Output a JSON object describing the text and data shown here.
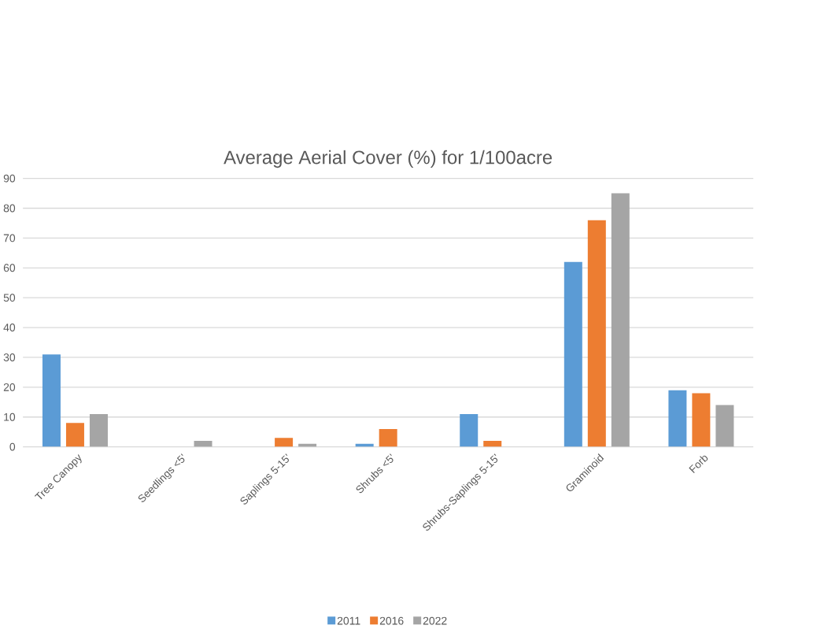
{
  "chart_data": {
    "type": "bar",
    "title": "Average Aerial Cover (%) for 1/100acre",
    "categories": [
      "Tree Canopy",
      "Seedlings <5'",
      "Saplings 5-15'",
      "Shrubs <5'",
      "Shrubs-Saplings 5-15'",
      "Graminoid",
      "Forb"
    ],
    "series": [
      {
        "name": "2011",
        "color": "#5b9bd5",
        "values": [
          31,
          0,
          0,
          1,
          11,
          62,
          19
        ]
      },
      {
        "name": "2016",
        "color": "#ed7d31",
        "values": [
          8,
          0,
          3,
          6,
          2,
          76,
          18
        ]
      },
      {
        "name": "2022",
        "color": "#a5a5a5",
        "values": [
          11,
          2,
          1,
          0,
          0,
          85,
          14
        ]
      }
    ],
    "ylim": [
      0,
      90
    ],
    "yticks": [
      0,
      10,
      20,
      30,
      40,
      50,
      60,
      70,
      80,
      90
    ],
    "grid": "y",
    "legend": "bottom"
  }
}
